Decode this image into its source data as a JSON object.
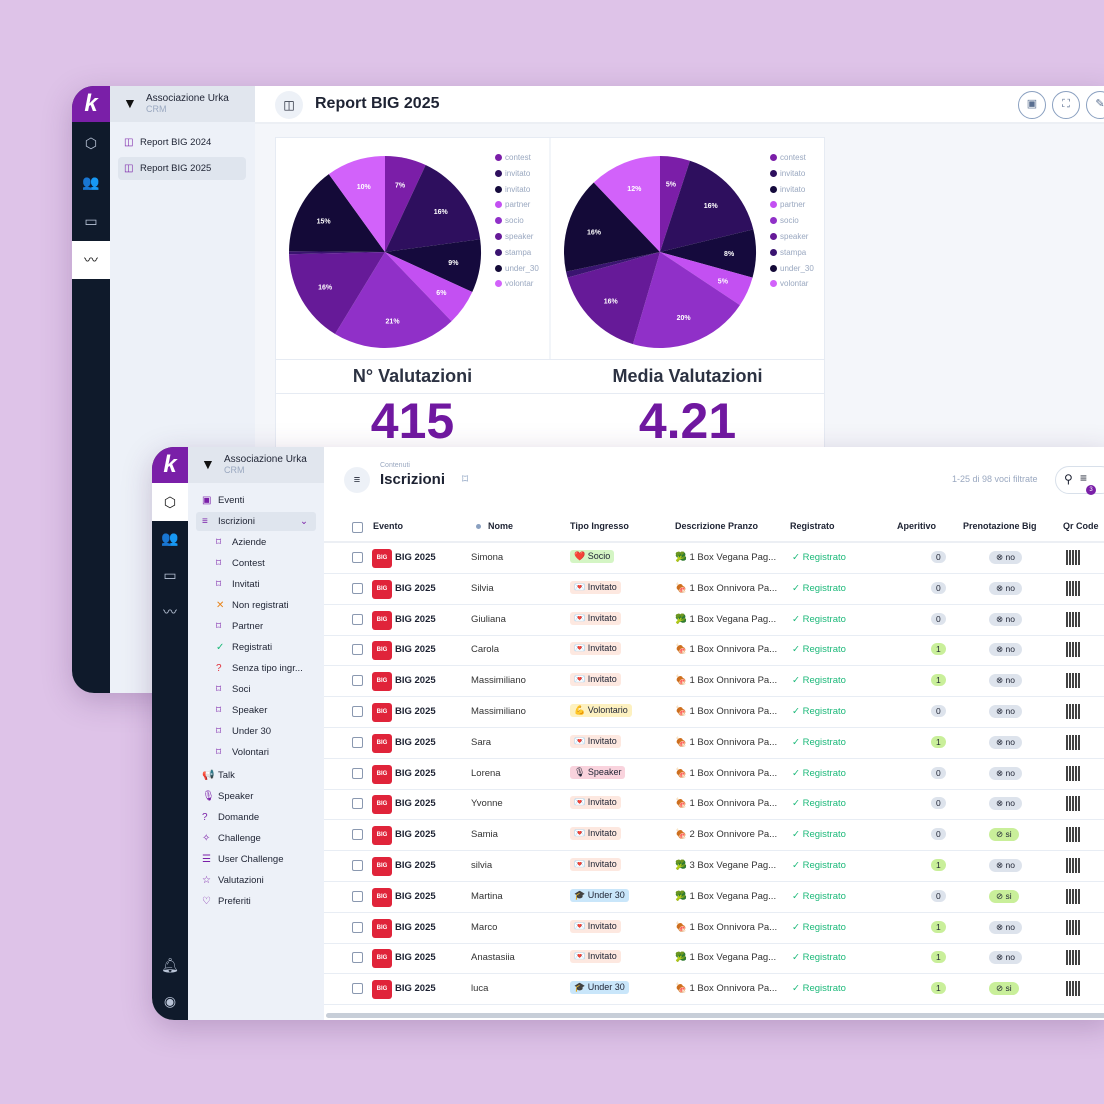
{
  "org": {
    "name": "Associazione Urka",
    "sub": "CRM"
  },
  "back": {
    "title": "Report BIG 2025",
    "nav": [
      {
        "label": "Report BIG 2024"
      },
      {
        "label": "Report BIG 2025",
        "active": true
      }
    ],
    "stats": [
      {
        "label": "N° Valutazioni",
        "value": "415"
      },
      {
        "label": "Media Valutazioni",
        "value": "4.21"
      }
    ]
  },
  "chart_data": [
    {
      "type": "pie",
      "legend_position": "right",
      "categories": [
        "contest",
        "invitato",
        "invitato",
        "partner",
        "socio",
        "speaker",
        "stampa",
        "under_30",
        "volontar"
      ],
      "values": [
        7,
        16,
        9,
        6,
        21,
        16,
        0.5,
        15,
        10
      ],
      "data_labels": [
        "7%",
        "16%",
        "9%",
        "6%",
        "21%",
        "16%",
        "",
        "15%",
        "10%"
      ]
    },
    {
      "type": "pie",
      "legend_position": "right",
      "categories": [
        "contest",
        "invitato",
        "invitato",
        "partner",
        "socio",
        "speaker",
        "stampa",
        "under_30",
        "volontar"
      ],
      "values": [
        5,
        16,
        8,
        5,
        20,
        16,
        1,
        16,
        12
      ],
      "data_labels": [
        "5%",
        "16%",
        "8%",
        "5%",
        "20%",
        "16%",
        "",
        "16%",
        "12%"
      ]
    }
  ],
  "colors": [
    "#7b1ea8",
    "#2e0f5e",
    "#150a3d",
    "#c350f2",
    "#9030c8",
    "#661a98",
    "#3a1470",
    "#140a38",
    "#d262fa"
  ],
  "front": {
    "section": "Contenuti",
    "title": "Iscrizioni",
    "count": "1-25 di 98 voci filtrate",
    "filter_badge": "3",
    "nav": [
      {
        "label": "Eventi",
        "icon": "▣",
        "lvl": 0
      },
      {
        "label": "Iscrizioni",
        "icon": "≡",
        "lvl": 0,
        "active": true
      },
      {
        "label": "Aziende",
        "icon": "⌑",
        "lvl": 1
      },
      {
        "label": "Contest",
        "icon": "⌑",
        "lvl": 1
      },
      {
        "label": "Invitati",
        "icon": "⌑",
        "lvl": 1
      },
      {
        "label": "Non registrati",
        "icon": "✕",
        "lvl": 1
      },
      {
        "label": "Partner",
        "icon": "⌑",
        "lvl": 1
      },
      {
        "label": "Registrati",
        "icon": "✓",
        "lvl": 1
      },
      {
        "label": "Senza tipo ingr...",
        "icon": "?",
        "lvl": 1
      },
      {
        "label": "Soci",
        "icon": "⌑",
        "lvl": 1
      },
      {
        "label": "Speaker",
        "icon": "⌑",
        "lvl": 1
      },
      {
        "label": "Under 30",
        "icon": "⌑",
        "lvl": 1
      },
      {
        "label": "Volontari",
        "icon": "⌑",
        "lvl": 1
      },
      {
        "label": "Talk",
        "icon": "📢",
        "lvl": 0
      },
      {
        "label": "Speaker",
        "icon": "🎙",
        "lvl": 0
      },
      {
        "label": "Domande",
        "icon": "?",
        "lvl": 0
      },
      {
        "label": "Challenge",
        "icon": "✧",
        "lvl": 0
      },
      {
        "label": "User Challenge",
        "icon": "☰",
        "lvl": 0
      },
      {
        "label": "Valutazioni",
        "icon": "☆",
        "lvl": 0
      },
      {
        "label": "Preferiti",
        "icon": "♡",
        "lvl": 0
      }
    ],
    "columns": [
      "Evento",
      "Nome",
      "Tipo Ingresso",
      "Descrizione Pranzo",
      "Registrato",
      "Aperitivo",
      "Prenotazione Big",
      "Qr Code"
    ],
    "rows": [
      {
        "evento": "BIG 2025",
        "nome": "Simona",
        "tipo": "❤️ Socio",
        "pranzo": "🥦 1 Box Vegana Pag...",
        "reg": "Registrato",
        "aper": "0",
        "pren": "no"
      },
      {
        "evento": "BIG 2025",
        "nome": "Silvia",
        "tipo": "💌 Invitato",
        "pranzo": "🍖 1 Box Onnivora Pa...",
        "reg": "Registrato",
        "aper": "0",
        "pren": "no"
      },
      {
        "evento": "BIG 2025",
        "nome": "Giuliana",
        "tipo": "💌 Invitato",
        "pranzo": "🥦 1 Box Vegana Pag...",
        "reg": "Registrato",
        "aper": "0",
        "pren": "no"
      },
      {
        "evento": "BIG 2025",
        "nome": "Carola",
        "tipo": "💌 Invitato",
        "pranzo": "🍖 1 Box Onnivora Pa...",
        "reg": "Registrato",
        "aper": "1",
        "pren": "no"
      },
      {
        "evento": "BIG 2025",
        "nome": "Massimiliano",
        "tipo": "💌 Invitato",
        "pranzo": "🍖 1 Box Onnivora Pa...",
        "reg": "Registrato",
        "aper": "1",
        "pren": "no"
      },
      {
        "evento": "BIG 2025",
        "nome": "Massimiliano",
        "tipo": "💪 Volontario",
        "pranzo": "🍖 1 Box Onnivora Pa...",
        "reg": "Registrato",
        "aper": "0",
        "pren": "no"
      },
      {
        "evento": "BIG 2025",
        "nome": "Sara",
        "tipo": "💌 Invitato",
        "pranzo": "🍖 1 Box Onnivora Pa...",
        "reg": "Registrato",
        "aper": "1",
        "pren": "no"
      },
      {
        "evento": "BIG 2025",
        "nome": "Lorena",
        "tipo": "🎙 Speaker",
        "pranzo": "🍖 1 Box Onnivora Pa...",
        "reg": "Registrato",
        "aper": "0",
        "pren": "no"
      },
      {
        "evento": "BIG 2025",
        "nome": "Yvonne",
        "tipo": "💌 Invitato",
        "pranzo": "🍖 1 Box Onnivora Pa...",
        "reg": "Registrato",
        "aper": "0",
        "pren": "no"
      },
      {
        "evento": "BIG 2025",
        "nome": "Samia",
        "tipo": "💌 Invitato",
        "pranzo": "🍖 2 Box Onnivore Pa...",
        "reg": "Registrato",
        "aper": "0",
        "pren": "si"
      },
      {
        "evento": "BIG 2025",
        "nome": "silvia",
        "tipo": "💌 Invitato",
        "pranzo": "🥦 3 Box Vegane Pag...",
        "reg": "Registrato",
        "aper": "1",
        "pren": "no"
      },
      {
        "evento": "BIG 2025",
        "nome": "Martina",
        "tipo": "🎓 Under 30",
        "pranzo": "🥦 1 Box Vegana Pag...",
        "reg": "Registrato",
        "aper": "0",
        "pren": "si"
      },
      {
        "evento": "BIG 2025",
        "nome": "Marco",
        "tipo": "💌 Invitato",
        "pranzo": "🍖 1 Box Onnivora Pa...",
        "reg": "Registrato",
        "aper": "1",
        "pren": "no"
      },
      {
        "evento": "BIG 2025",
        "nome": "Anastasiia",
        "tipo": "💌 Invitato",
        "pranzo": "🥦 1 Box Vegana Pag...",
        "reg": "Registrato",
        "aper": "1",
        "pren": "no"
      },
      {
        "evento": "BIG 2025",
        "nome": "luca",
        "tipo": "🎓 Under 30",
        "pranzo": "🍖 1 Box Onnivora Pa...",
        "reg": "Registrato",
        "aper": "1",
        "pren": "si"
      }
    ],
    "badge_colors": {
      "Socio": "#d4f5c4",
      "Invitato": "#fde8e0",
      "Volontario": "#fdf1c0",
      "Speaker": "#f9d3dd",
      "Under 30": "#c9e6fa"
    }
  }
}
